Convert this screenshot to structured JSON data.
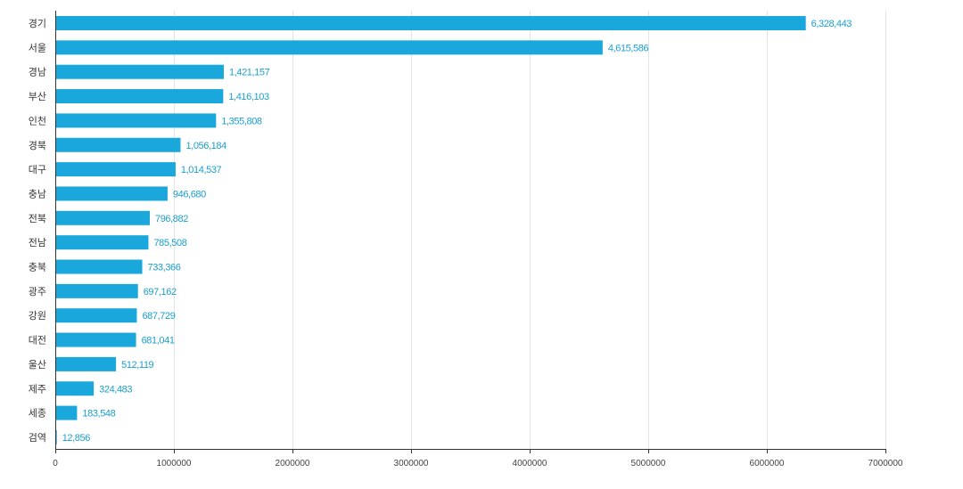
{
  "chart_data": {
    "type": "bar",
    "orientation": "horizontal",
    "categories": [
      "경기",
      "서울",
      "경남",
      "부산",
      "인천",
      "경북",
      "대구",
      "충남",
      "전북",
      "전남",
      "충북",
      "광주",
      "강원",
      "대전",
      "울산",
      "제주",
      "세종",
      "검역"
    ],
    "values": [
      6328443,
      4615586,
      1421157,
      1416103,
      1355808,
      1056184,
      1014537,
      946680,
      796882,
      785508,
      733366,
      697162,
      687729,
      681041,
      512119,
      324483,
      183548,
      12856
    ],
    "value_labels": [
      "6,328,443",
      "4,615,586",
      "1,421,157",
      "1,416,103",
      "1,355,808",
      "1,056,184",
      "1,014,537",
      "946,680",
      "796,882",
      "785,508",
      "733,366",
      "697,162",
      "687,729",
      "681,041",
      "512,119",
      "324,483",
      "183,548",
      "12,856"
    ],
    "xlim": [
      0,
      7000000
    ],
    "xticks": [
      0,
      1000000,
      2000000,
      3000000,
      4000000,
      5000000,
      6000000,
      7000000
    ],
    "xtick_labels": [
      "0",
      "1000000",
      "2000000",
      "3000000",
      "4000000",
      "5000000",
      "6000000",
      "7000000"
    ],
    "grid": true,
    "colors": {
      "bar": "#1aa8dc",
      "label": "#1a9fcc",
      "grid": "#e3e3e3"
    }
  }
}
